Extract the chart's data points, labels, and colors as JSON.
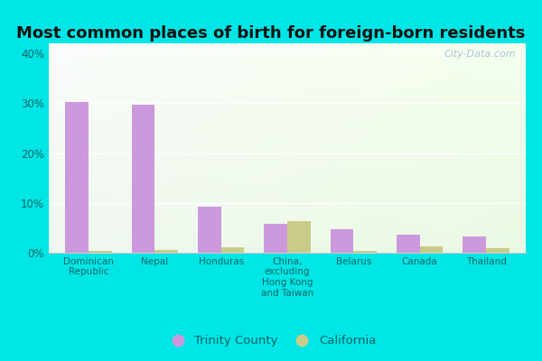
{
  "title": "Most common places of birth for foreign-born residents",
  "categories": [
    "Dominican\nRepublic",
    "Nepal",
    "Honduras",
    "China,\nexcluding\nHong Kong\nand Taiwan",
    "Belarus",
    "Canada",
    "Thailand"
  ],
  "trinity_county": [
    30.3,
    29.7,
    9.2,
    5.8,
    4.7,
    3.7,
    3.3
  ],
  "california": [
    0.4,
    0.5,
    1.0,
    6.3,
    0.3,
    1.3,
    0.9
  ],
  "trinity_color": "#cc99dd",
  "california_color": "#c8cc88",
  "bar_width": 0.35,
  "ylim": [
    0,
    42
  ],
  "yticks": [
    0,
    10,
    20,
    30,
    40
  ],
  "ytick_labels": [
    "0%",
    "10%",
    "20%",
    "30%",
    "40%"
  ],
  "background_outer": "#00e5e5",
  "watermark": "City-Data.com",
  "legend_labels": [
    "Trinity County",
    "California"
  ],
  "title_fontsize": 13,
  "tick_label_color": "#006666",
  "axis_label_color": "#006666"
}
